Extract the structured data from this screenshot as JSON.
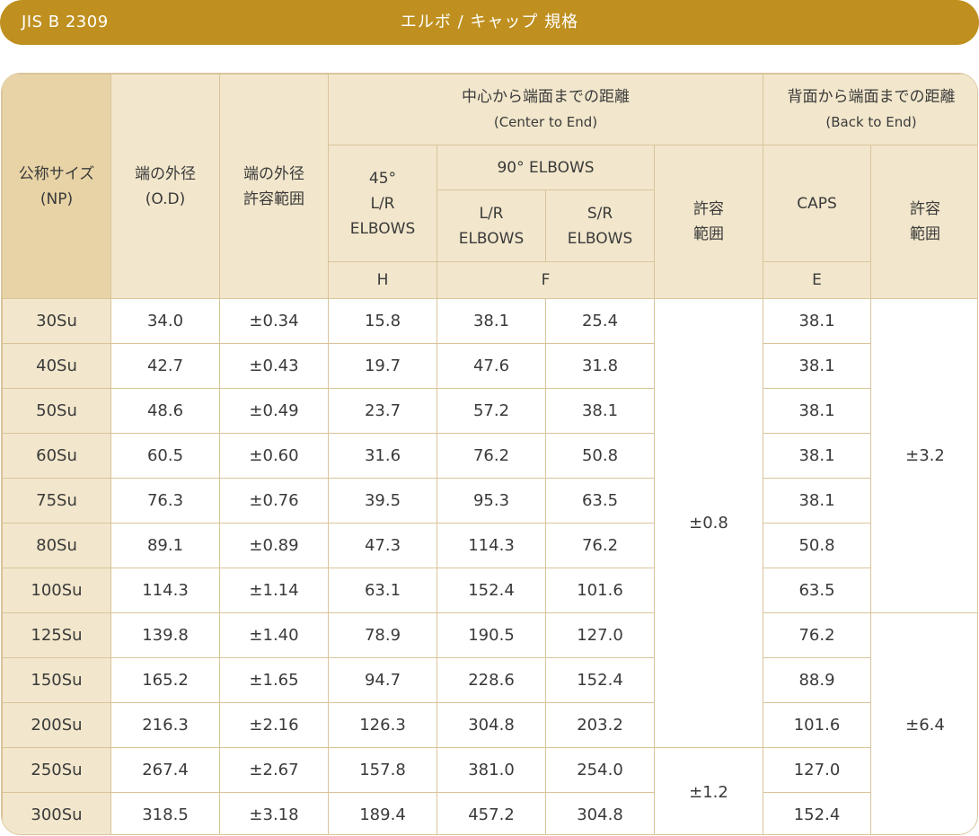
{
  "title_bar": {
    "standard": "JIS B 2309",
    "title": "エルボ / キャップ 規格"
  },
  "header": {
    "np": [
      "公称サイズ",
      "(NP)"
    ],
    "od": [
      "端の外径",
      "(O.D)"
    ],
    "od_tol": [
      "端の外径",
      "許容範囲"
    ],
    "center_to_end": [
      "中心から端面までの距離",
      "(Center to End)"
    ],
    "back_to_end": [
      "背面から端面までの距離",
      "(Back to End)"
    ],
    "elbow45": [
      "45°",
      "L/R",
      "ELBOWS"
    ],
    "elbow90": "90° ELBOWS",
    "lr": [
      "L/R",
      "ELBOWS"
    ],
    "sr": [
      "S/R",
      "ELBOWS"
    ],
    "tol_center": [
      "許容",
      "範囲"
    ],
    "caps": "CAPS",
    "tol_back": [
      "許容",
      "範囲"
    ],
    "H": "H",
    "F": "F",
    "E": "E"
  },
  "rows": [
    {
      "np": "30Su",
      "od": "34.0",
      "tol": "±0.34",
      "h": "15.8",
      "lr": "38.1",
      "sr": "25.4",
      "e": "38.1"
    },
    {
      "np": "40Su",
      "od": "42.7",
      "tol": "±0.43",
      "h": "19.7",
      "lr": "47.6",
      "sr": "31.8",
      "e": "38.1"
    },
    {
      "np": "50Su",
      "od": "48.6",
      "tol": "±0.49",
      "h": "23.7",
      "lr": "57.2",
      "sr": "38.1",
      "e": "38.1"
    },
    {
      "np": "60Su",
      "od": "60.5",
      "tol": "±0.60",
      "h": "31.6",
      "lr": "76.2",
      "sr": "50.8",
      "e": "38.1"
    },
    {
      "np": "75Su",
      "od": "76.3",
      "tol": "±0.76",
      "h": "39.5",
      "lr": "95.3",
      "sr": "63.5",
      "e": "38.1"
    },
    {
      "np": "80Su",
      "od": "89.1",
      "tol": "±0.89",
      "h": "47.3",
      "lr": "114.3",
      "sr": "76.2",
      "e": "50.8"
    },
    {
      "np": "100Su",
      "od": "114.3",
      "tol": "±1.14",
      "h": "63.1",
      "lr": "152.4",
      "sr": "101.6",
      "e": "63.5"
    },
    {
      "np": "125Su",
      "od": "139.8",
      "tol": "±1.40",
      "h": "78.9",
      "lr": "190.5",
      "sr": "127.0",
      "e": "76.2"
    },
    {
      "np": "150Su",
      "od": "165.2",
      "tol": "±1.65",
      "h": "94.7",
      "lr": "228.6",
      "sr": "152.4",
      "e": "88.9"
    },
    {
      "np": "200Su",
      "od": "216.3",
      "tol": "±2.16",
      "h": "126.3",
      "lr": "304.8",
      "sr": "203.2",
      "e": "101.6"
    },
    {
      "np": "250Su",
      "od": "267.4",
      "tol": "±2.67",
      "h": "157.8",
      "lr": "381.0",
      "sr": "254.0",
      "e": "127.0"
    },
    {
      "np": "300Su",
      "od": "318.5",
      "tol": "±3.18",
      "h": "189.4",
      "lr": "457.2",
      "sr": "304.8",
      "e": "152.4"
    }
  ],
  "merged": {
    "center_tol_a": "±0.8",
    "center_tol_b": "±1.2",
    "back_tol_a": "±3.2",
    "back_tol_b": "±6.4"
  }
}
